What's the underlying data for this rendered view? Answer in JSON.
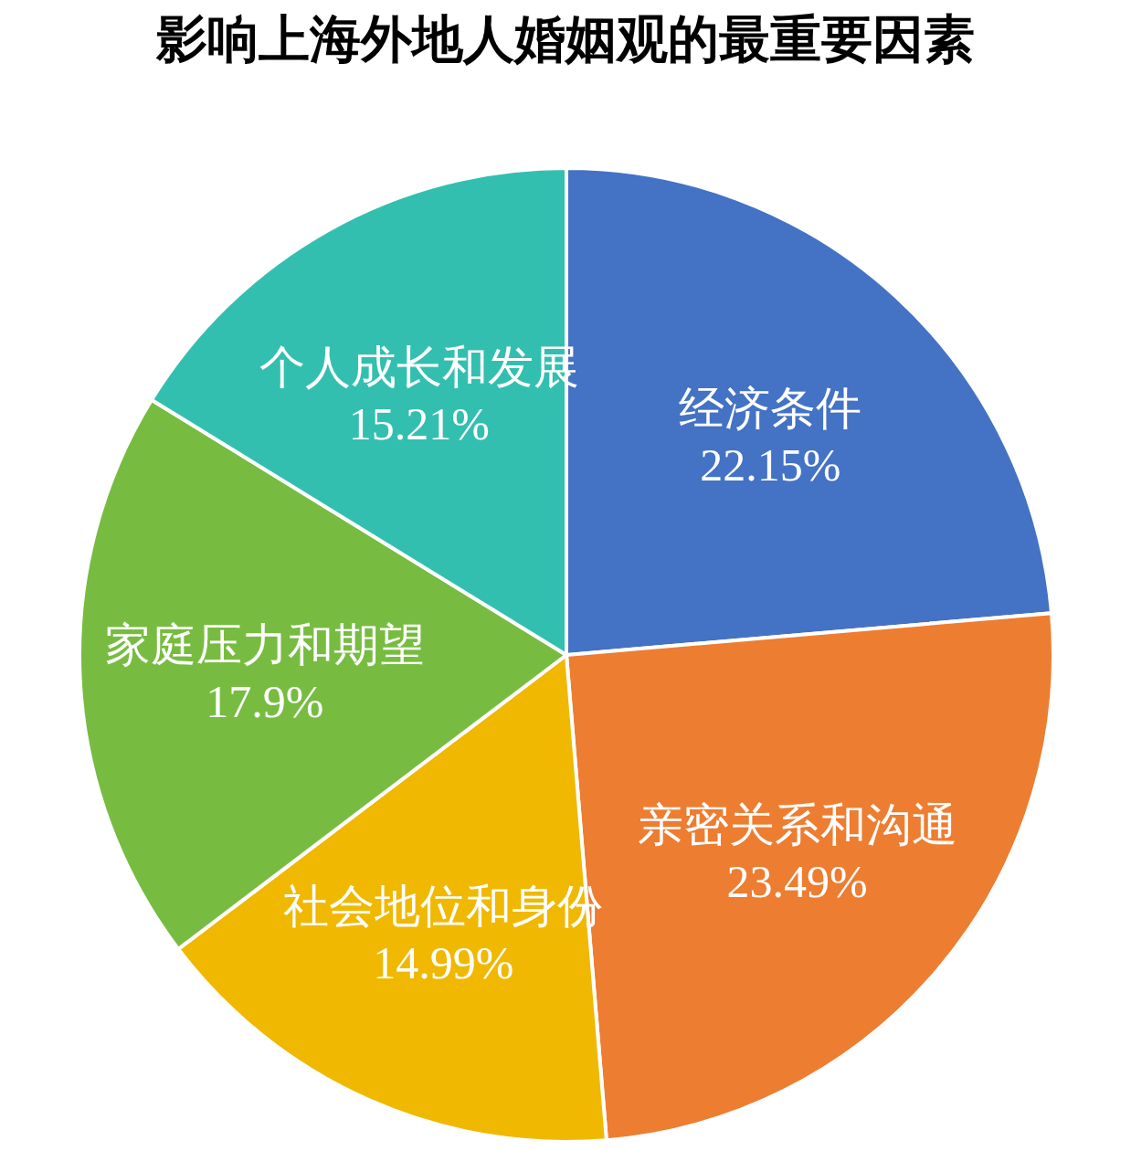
{
  "chart_data": {
    "type": "pie",
    "title": "影响上海外地人婚姻观的最重要因素",
    "categories": [
      "经济条件",
      "亲密关系和沟通",
      "社会地位和身份",
      "家庭压力和期望",
      "个人成长和发展"
    ],
    "values": [
      22.15,
      23.49,
      14.99,
      17.9,
      15.21
    ],
    "value_labels": [
      "22.15%",
      "23.49%",
      "14.99%",
      "17.9%",
      "15.21%"
    ],
    "colors": [
      "#4472c4",
      "#ed7d31",
      "#f0b800",
      "#77bc41",
      "#33bfb0"
    ]
  }
}
